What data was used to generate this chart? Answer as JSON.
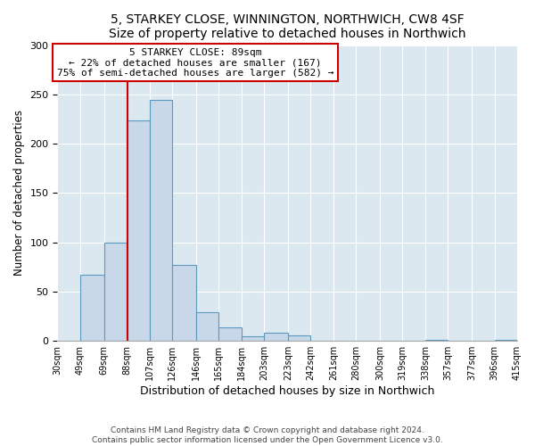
{
  "title": "5, STARKEY CLOSE, WINNINGTON, NORTHWICH, CW8 4SF",
  "subtitle": "Size of property relative to detached houses in Northwich",
  "xlabel": "Distribution of detached houses by size in Northwich",
  "ylabel": "Number of detached properties",
  "bin_edges": [
    30,
    49,
    69,
    88,
    107,
    126,
    146,
    165,
    184,
    203,
    223,
    242,
    261,
    280,
    300,
    319,
    338,
    357,
    377,
    396,
    415
  ],
  "bin_labels": [
    "30sqm",
    "49sqm",
    "69sqm",
    "88sqm",
    "107sqm",
    "126sqm",
    "146sqm",
    "165sqm",
    "184sqm",
    "203sqm",
    "223sqm",
    "242sqm",
    "261sqm",
    "280sqm",
    "300sqm",
    "319sqm",
    "338sqm",
    "357sqm",
    "377sqm",
    "396sqm",
    "415sqm"
  ],
  "counts": [
    0,
    67,
    100,
    224,
    244,
    77,
    29,
    14,
    5,
    8,
    6,
    0,
    0,
    0,
    0,
    0,
    1,
    0,
    0,
    1
  ],
  "bar_color": "#c8d8e8",
  "bar_edge_color": "#5a9abf",
  "red_line_x": 89,
  "annotation_title": "5 STARKEY CLOSE: 89sqm",
  "annotation_line1": "← 22% of detached houses are smaller (167)",
  "annotation_line2": "75% of semi-detached houses are larger (582) →",
  "annotation_box_color": "#ffffff",
  "annotation_box_edge": "#cc0000",
  "red_line_color": "#cc0000",
  "ylim": [
    0,
    300
  ],
  "yticks": [
    0,
    50,
    100,
    150,
    200,
    250,
    300
  ],
  "footer1": "Contains HM Land Registry data © Crown copyright and database right 2024.",
  "footer2": "Contains public sector information licensed under the Open Government Licence v3.0.",
  "bg_color": "#ffffff",
  "plot_bg_color": "#dce8f0",
  "grid_color": "#ffffff"
}
